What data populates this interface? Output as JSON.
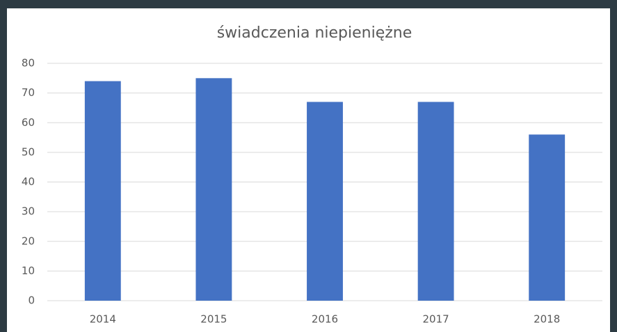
{
  "chart_data": {
    "type": "bar",
    "title": "świadczenia niepieniężne",
    "categories": [
      "2014",
      "2015",
      "2016",
      "2017",
      "2018"
    ],
    "values": [
      74,
      75,
      67,
      67,
      56
    ],
    "color": "#4472c4",
    "ylim": [
      0,
      80
    ],
    "yticks": [
      0,
      10,
      20,
      30,
      40,
      50,
      60,
      70,
      80
    ],
    "grid": true
  }
}
